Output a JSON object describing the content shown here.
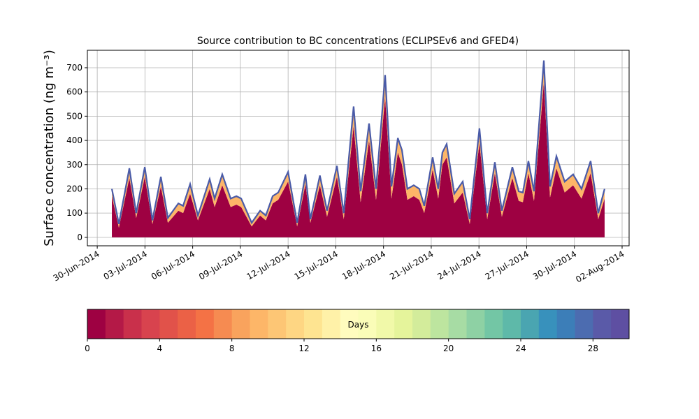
{
  "chart_data": {
    "type": "stacked_area",
    "title": "Source contribution to BC concentrations (ECLIPSEv6 and GFED4)",
    "ylabel": "Surface concentration (ng m⁻³)",
    "x": [
      0.92,
      1.36,
      2.02,
      2.45,
      2.99,
      3.47,
      4.0,
      4.44,
      5.1,
      5.4,
      5.84,
      6.33,
      7.07,
      7.38,
      7.86,
      8.39,
      8.75,
      9.05,
      9.71,
      10.24,
      10.6,
      11.03,
      11.38,
      12.0,
      12.57,
      13.09,
      13.4,
      14.0,
      14.45,
      15.07,
      15.5,
      16.12,
      16.56,
      17.09,
      17.53,
      18.1,
      18.5,
      18.9,
      19.16,
      19.5,
      19.9,
      20.25,
      20.56,
      21.09,
      21.44,
      21.7,
      21.97,
      22.45,
      22.98,
      23.42,
      24.03,
      24.52,
      25.0,
      25.44,
      26.1,
      26.5,
      26.76,
      27.11,
      27.46,
      28.08,
      28.47,
      28.87,
      29.39,
      29.92,
      30.45,
      31.02,
      31.5,
      31.9
    ],
    "series": [
      {
        "color": "#9e0142",
        "values": [
          170,
          40,
          245,
          80,
          250,
          55,
          210,
          60,
          110,
          100,
          180,
          70,
          200,
          125,
          215,
          125,
          135,
          125,
          45,
          90,
          70,
          140,
          155,
          230,
          45,
          220,
          60,
          215,
          85,
          250,
          75,
          460,
          145,
          400,
          155,
          580,
          160,
          350,
          300,
          155,
          170,
          155,
          100,
          280,
          160,
          300,
          330,
          140,
          185,
          55,
          390,
          75,
          265,
          85,
          245,
          150,
          145,
          265,
          150,
          640,
          165,
          285,
          185,
          215,
          160,
          265,
          75,
          160
        ]
      },
      {
        "color": "#fdb668",
        "values": [
          30,
          15,
          40,
          20,
          40,
          15,
          40,
          20,
          30,
          30,
          40,
          20,
          40,
          35,
          45,
          35,
          35,
          35,
          15,
          20,
          20,
          30,
          30,
          40,
          15,
          40,
          15,
          40,
          25,
          45,
          25,
          80,
          45,
          70,
          45,
          90,
          50,
          60,
          60,
          45,
          45,
          45,
          30,
          50,
          40,
          50,
          55,
          40,
          45,
          20,
          60,
          25,
          45,
          25,
          45,
          40,
          40,
          50,
          40,
          90,
          45,
          50,
          45,
          45,
          40,
          50,
          25,
          40
        ]
      }
    ],
    "line_color": "#4a5ba8",
    "xlim": [
      -0.62,
      33.44
    ],
    "xticks": [
      {
        "value": 0,
        "label": "30-Jun-2014"
      },
      {
        "value": 3,
        "label": "03-Jul-2014"
      },
      {
        "value": 6,
        "label": "06-Jul-2014"
      },
      {
        "value": 9,
        "label": "09-Jul-2014"
      },
      {
        "value": 12,
        "label": "12-Jul-2014"
      },
      {
        "value": 15,
        "label": "15-Jul-2014"
      },
      {
        "value": 18,
        "label": "18-Jul-2014"
      },
      {
        "value": 21,
        "label": "21-Jul-2014"
      },
      {
        "value": 24,
        "label": "24-Jul-2014"
      },
      {
        "value": 27,
        "label": "27-Jul-2014"
      },
      {
        "value": 30,
        "label": "30-Jul-2014"
      },
      {
        "value": 33,
        "label": "02-Aug-2014"
      }
    ],
    "ylim": [
      -35,
      772
    ],
    "yticks": [
      0,
      100,
      200,
      300,
      400,
      500,
      600,
      700
    ],
    "grid": true,
    "colorbar": {
      "label": "Days",
      "lim": [
        0,
        30
      ],
      "ticks": [
        0,
        4,
        8,
        12,
        16,
        20,
        24,
        28
      ],
      "colors": [
        "#9e0142",
        "#b41947",
        "#c9304b",
        "#d8434e",
        "#e1524a",
        "#eb6146",
        "#f47245",
        "#f68b51",
        "#f9a35d",
        "#fdb668",
        "#fdc675",
        "#fed683",
        "#fee491",
        "#fff1a8",
        "#fffcbe",
        "#fafdb8",
        "#f1f9a9",
        "#e5f49b",
        "#d3ec9b",
        "#bde59f",
        "#a7dca4",
        "#8ed1a4",
        "#73c6a5",
        "#5eb9a9",
        "#4aa5b1",
        "#3891bc",
        "#3c7eb8",
        "#4c6cb0",
        "#5a5aa8",
        "#5e4fa2"
      ]
    }
  }
}
